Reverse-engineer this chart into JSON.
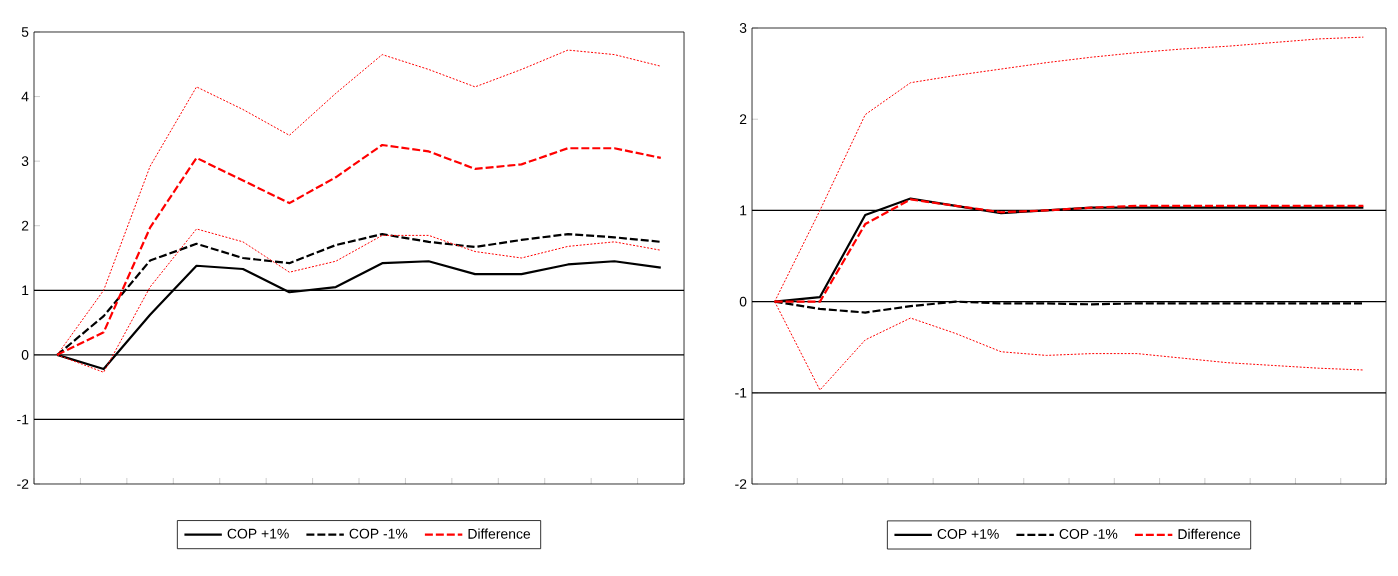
{
  "chart_data": [
    {
      "type": "line",
      "categories": [
        null,
        null,
        null,
        null,
        null,
        null,
        null,
        null,
        null,
        null,
        null,
        null,
        null,
        null
      ],
      "ylim": [
        -2,
        5
      ],
      "yticks": [
        -2,
        -1,
        0,
        1,
        2,
        3,
        4,
        5
      ],
      "tick_labels": "y",
      "legend": "bottom",
      "grid": false,
      "ref_lines": [
        {
          "axis": "y",
          "value": 1,
          "color": "#000000"
        },
        {
          "axis": "y",
          "value": 0,
          "color": "#000000"
        },
        {
          "axis": "y",
          "value": -1,
          "color": "#000000"
        }
      ],
      "series": [
        {
          "name": "COP +1%",
          "color": "#000000",
          "line_style": "solid",
          "values": [
            0,
            -0.22,
            0.62,
            1.38,
            1.33,
            0.97,
            1.05,
            1.42,
            1.45,
            1.25,
            1.25,
            1.4,
            1.45,
            1.35
          ]
        },
        {
          "name": "COP -1%",
          "color": "#000000",
          "line_style": "dashed",
          "values": [
            0,
            0.6,
            1.46,
            1.72,
            1.5,
            1.42,
            1.7,
            1.87,
            1.75,
            1.67,
            1.78,
            1.87,
            1.82,
            1.75
          ]
        },
        {
          "name": "Difference",
          "color": "#ff0000",
          "line_style": "dashed",
          "values": [
            0,
            0.35,
            1.97,
            3.05,
            2.7,
            2.35,
            2.75,
            3.25,
            3.15,
            2.88,
            2.95,
            3.2,
            3.2,
            3.05
          ]
        },
        {
          "color": "#ff0000",
          "line_style": "dotted",
          "values": [
            0,
            1.0,
            2.92,
            4.15,
            3.8,
            3.4,
            4.05,
            4.65,
            4.42,
            4.15,
            4.42,
            4.72,
            4.65,
            4.47
          ]
        },
        {
          "color": "#ff0000",
          "line_style": "dotted",
          "values": [
            0,
            -0.27,
            1.05,
            1.95,
            1.75,
            1.28,
            1.45,
            1.85,
            1.85,
            1.6,
            1.5,
            1.68,
            1.75,
            1.62
          ]
        }
      ]
    },
    {
      "type": "line",
      "categories": [
        null,
        null,
        null,
        null,
        null,
        null,
        null,
        null,
        null,
        null,
        null,
        null,
        null,
        null
      ],
      "ylim": [
        -2,
        3
      ],
      "yticks": [
        -2,
        -1,
        0,
        1,
        2,
        3
      ],
      "tick_labels": "y",
      "legend": "bottom",
      "grid": false,
      "ref_lines": [
        {
          "axis": "y",
          "value": 1,
          "color": "#000000"
        },
        {
          "axis": "y",
          "value": 0,
          "color": "#000000"
        },
        {
          "axis": "y",
          "value": -1,
          "color": "#000000"
        }
      ],
      "series": [
        {
          "name": "COP +1%",
          "color": "#000000",
          "line_style": "solid",
          "values": [
            0,
            0.05,
            0.95,
            1.13,
            1.05,
            0.97,
            1.0,
            1.03,
            1.03,
            1.03,
            1.03,
            1.03,
            1.03,
            1.03
          ]
        },
        {
          "name": "COP -1%",
          "color": "#000000",
          "line_style": "dashed",
          "values": [
            0,
            -0.08,
            -0.12,
            -0.05,
            0.0,
            -0.02,
            -0.02,
            -0.03,
            -0.02,
            -0.02,
            -0.02,
            -0.02,
            -0.02,
            -0.02
          ]
        },
        {
          "name": "Difference",
          "color": "#ff0000",
          "line_style": "dashed",
          "values": [
            0,
            0.0,
            0.85,
            1.12,
            1.05,
            0.98,
            1.0,
            1.03,
            1.05,
            1.05,
            1.05,
            1.05,
            1.05,
            1.05
          ]
        },
        {
          "color": "#ff0000",
          "line_style": "dotted",
          "values": [
            0,
            1.0,
            2.05,
            2.4,
            2.48,
            2.55,
            2.62,
            2.68,
            2.73,
            2.77,
            2.8,
            2.84,
            2.88,
            2.9
          ]
        },
        {
          "color": "#ff0000",
          "line_style": "dotted",
          "values": [
            0,
            -0.97,
            -0.42,
            -0.18,
            -0.35,
            -0.55,
            -0.59,
            -0.57,
            -0.57,
            -0.62,
            -0.67,
            -0.7,
            -0.73,
            -0.75
          ]
        }
      ]
    }
  ]
}
